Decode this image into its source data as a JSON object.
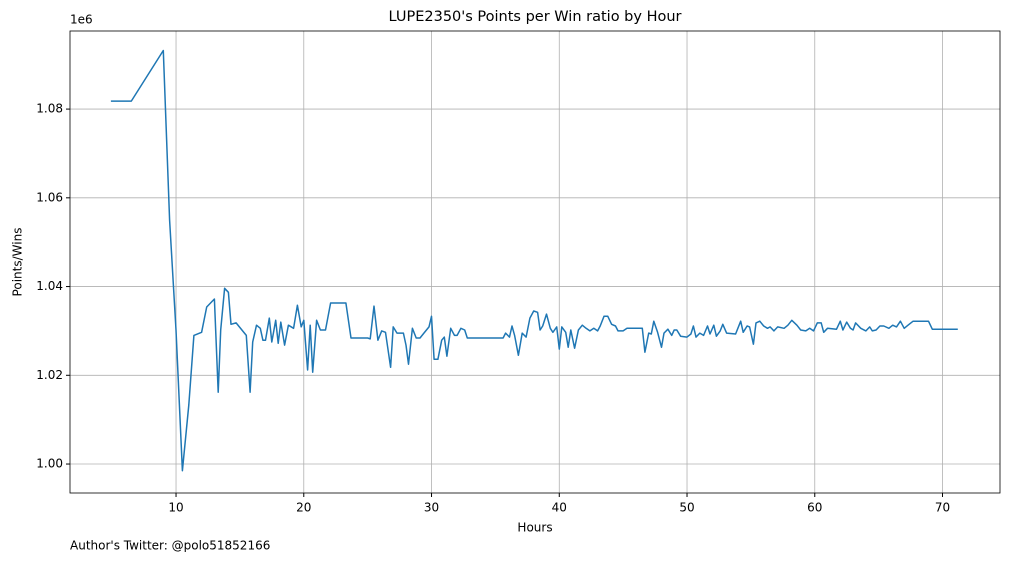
{
  "chart_data": {
    "type": "line",
    "title": "LUPE2350's Points per Win ratio by Hour",
    "xlabel": "Hours",
    "ylabel": "Points/Wins",
    "y_offset": "1e6",
    "footnote": "Author's Twitter: @polo51852166",
    "xlim": [
      1.7,
      74.5
    ],
    "ylim": [
      993470,
      1097600
    ],
    "xticks": [
      10,
      20,
      30,
      40,
      50,
      60,
      70
    ],
    "yticks": [
      {
        "value": 1000000,
        "label": "1.00"
      },
      {
        "value": 1020000,
        "label": "1.02"
      },
      {
        "value": 1040000,
        "label": "1.04"
      },
      {
        "value": 1060000,
        "label": "1.06"
      },
      {
        "value": 1080000,
        "label": "1.08"
      }
    ],
    "grid": true,
    "series": [
      {
        "name": "Points/Wins",
        "color": "#1f77b4",
        "x": [
          4.9,
          6.5,
          9.0,
          9.5,
          10.0,
          10.5,
          11.0,
          11.4,
          12.0,
          12.4,
          13.0,
          13.3,
          13.5,
          13.8,
          14.1,
          14.3,
          14.7,
          15.5,
          15.8,
          16.0,
          16.3,
          16.6,
          16.8,
          17.0,
          17.3,
          17.5,
          17.8,
          18.0,
          18.2,
          18.5,
          18.8,
          19.2,
          19.5,
          19.8,
          20.0,
          20.3,
          20.5,
          20.7,
          21.0,
          21.3,
          21.7,
          22.1,
          23.3,
          23.7,
          25.0,
          25.2,
          25.5,
          25.8,
          26.1,
          26.4,
          26.8,
          27.0,
          27.3,
          27.8,
          28.0,
          28.2,
          28.5,
          28.8,
          29.1,
          29.4,
          29.8,
          30.0,
          30.2,
          30.5,
          30.8,
          31.0,
          31.2,
          31.5,
          31.8,
          32.0,
          32.3,
          32.6,
          32.8,
          35.6,
          35.8,
          36.1,
          36.3,
          36.5,
          36.8,
          37.1,
          37.4,
          37.7,
          38.0,
          38.3,
          38.5,
          38.7,
          39.0,
          39.3,
          39.5,
          39.8,
          40.0,
          40.2,
          40.5,
          40.7,
          40.9,
          41.2,
          41.5,
          41.8,
          42.1,
          42.4,
          42.7,
          43.0,
          43.2,
          43.5,
          43.8,
          44.1,
          44.4,
          44.6,
          45.0,
          45.3,
          46.5,
          46.7,
          47.0,
          47.2,
          47.4,
          47.7,
          48.0,
          48.2,
          48.5,
          48.8,
          49.0,
          49.2,
          49.5,
          50.0,
          50.3,
          50.5,
          50.7,
          51.0,
          51.3,
          51.6,
          51.8,
          52.1,
          52.3,
          52.6,
          52.8,
          53.1,
          53.8,
          54.2,
          54.4,
          54.7,
          54.9,
          55.2,
          55.4,
          55.7,
          56.0,
          56.3,
          56.5,
          56.8,
          57.1,
          57.6,
          57.9,
          58.2,
          58.6,
          58.9,
          59.3,
          59.6,
          59.9,
          60.2,
          60.5,
          60.7,
          61.0,
          61.7,
          62.0,
          62.2,
          62.5,
          62.8,
          63.0,
          63.2,
          63.6,
          64.0,
          64.3,
          64.5,
          64.8,
          65.1,
          65.4,
          65.8,
          66.1,
          66.4,
          66.7,
          67.0,
          67.3,
          67.7,
          68.9,
          69.2,
          71.2
        ],
        "values": [
          1081800,
          1081800,
          1093200,
          1055000,
          1030200,
          998500,
          1013300,
          1029000,
          1029700,
          1035400,
          1037200,
          1016200,
          1030200,
          1039600,
          1038700,
          1031500,
          1031800,
          1029000,
          1016200,
          1027500,
          1031300,
          1030600,
          1027900,
          1027900,
          1032900,
          1027500,
          1032400,
          1027200,
          1032000,
          1026800,
          1031300,
          1030600,
          1035800,
          1030900,
          1032400,
          1021200,
          1031300,
          1020700,
          1032400,
          1030200,
          1030200,
          1036300,
          1036300,
          1028400,
          1028400,
          1028200,
          1035600,
          1027900,
          1030000,
          1029700,
          1021800,
          1030900,
          1029500,
          1029500,
          1026800,
          1022500,
          1030600,
          1028400,
          1028400,
          1029500,
          1030900,
          1033300,
          1023600,
          1023600,
          1027900,
          1028600,
          1024300,
          1030600,
          1029000,
          1029000,
          1030600,
          1030200,
          1028400,
          1028400,
          1029500,
          1028600,
          1031100,
          1029000,
          1024500,
          1029500,
          1028600,
          1032900,
          1034500,
          1034200,
          1030200,
          1031100,
          1033800,
          1030600,
          1029700,
          1030900,
          1025900,
          1030900,
          1029700,
          1026300,
          1030200,
          1026100,
          1030200,
          1031300,
          1030600,
          1030000,
          1030600,
          1030000,
          1031100,
          1033300,
          1033300,
          1031500,
          1031100,
          1030000,
          1030000,
          1030600,
          1030600,
          1025200,
          1029500,
          1029300,
          1032200,
          1029700,
          1026300,
          1029500,
          1030400,
          1029000,
          1030200,
          1030200,
          1028800,
          1028600,
          1029300,
          1031100,
          1028600,
          1029500,
          1029000,
          1031100,
          1029300,
          1031300,
          1028800,
          1030000,
          1031500,
          1029500,
          1029300,
          1032200,
          1029700,
          1031100,
          1030900,
          1027000,
          1031800,
          1032200,
          1031100,
          1030600,
          1030900,
          1030000,
          1030900,
          1030600,
          1031300,
          1032400,
          1031300,
          1030200,
          1030000,
          1030600,
          1030000,
          1031800,
          1031800,
          1029700,
          1030600,
          1030400,
          1032200,
          1030200,
          1032000,
          1030600,
          1030200,
          1031800,
          1030600,
          1030000,
          1030900,
          1030000,
          1030200,
          1031100,
          1031100,
          1030600,
          1031300,
          1030900,
          1032200,
          1030600,
          1031300,
          1032200,
          1032200,
          1030400,
          1030400
        ]
      }
    ]
  }
}
